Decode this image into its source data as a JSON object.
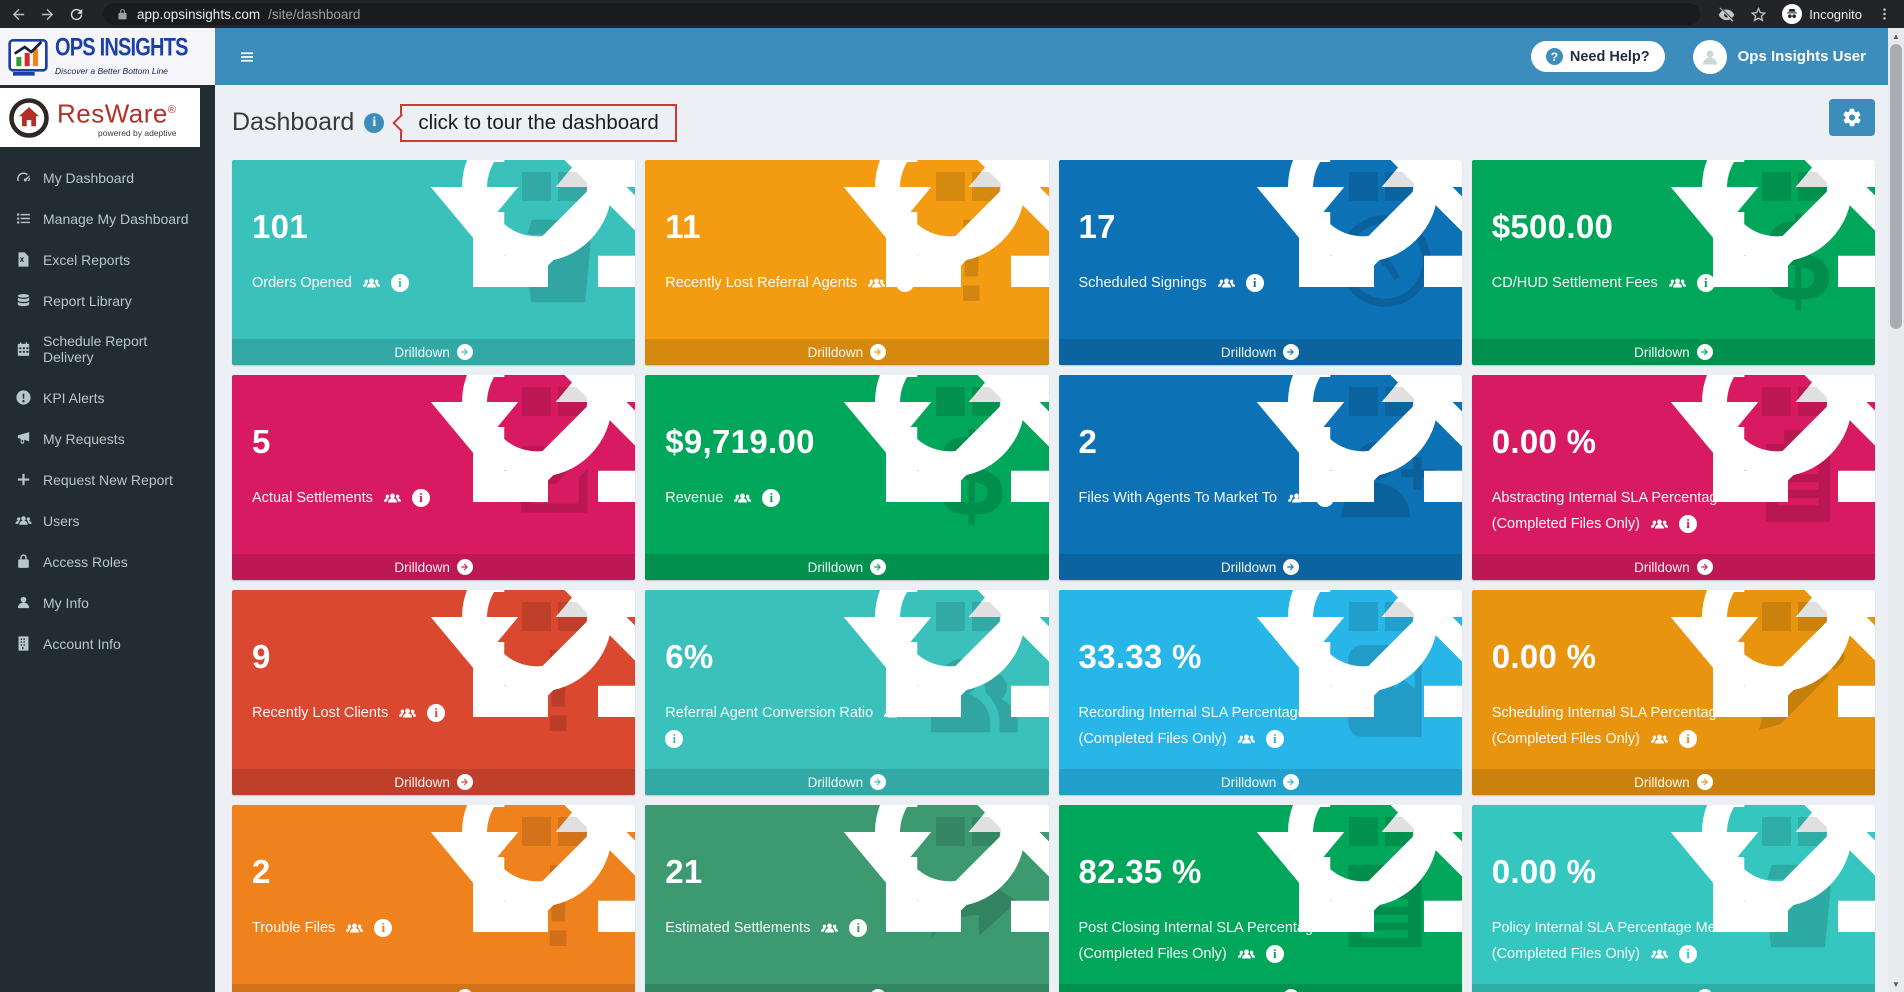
{
  "browser": {
    "url": {
      "host": "app.opsinsights.com",
      "path": "/site/dashboard"
    },
    "incognito_label": "Incognito"
  },
  "app_header": {
    "brand_title": "OPS INSIGHTS",
    "brand_tagline": "Discover a Better Bottom Line",
    "need_help_label": "Need Help?",
    "user_name": "Ops Insights User"
  },
  "sidebar": {
    "logo_text": "ResWare",
    "logo_reg": "®",
    "logo_sub": "powered by adeptive",
    "items": [
      {
        "icon": "gauge-icon",
        "label": "My Dashboard"
      },
      {
        "icon": "list-icon",
        "label": "Manage My Dashboard"
      },
      {
        "icon": "excel-icon",
        "label": "Excel Reports"
      },
      {
        "icon": "database-icon",
        "label": "Report Library"
      },
      {
        "icon": "calendar-icon",
        "label": "Schedule Report Delivery"
      },
      {
        "icon": "alert-circle-icon",
        "label": "KPI Alerts"
      },
      {
        "icon": "bullhorn-icon",
        "label": "My Requests"
      },
      {
        "icon": "plus-icon",
        "label": "Request New Report"
      },
      {
        "icon": "users-icon",
        "label": "Users"
      },
      {
        "icon": "lock-icon",
        "label": "Access Roles"
      },
      {
        "icon": "user-icon",
        "label": "My Info"
      },
      {
        "icon": "building-icon",
        "label": "Account Info"
      }
    ]
  },
  "page": {
    "title": "Dashboard",
    "tour_note": "click to tour the dashboard"
  },
  "tiles": [
    {
      "value": "101",
      "label": "Orders Opened",
      "label2": null,
      "icons_layout": "inline",
      "color": "#3ac1bc",
      "watermark": "bin-icon",
      "drilldown_label": "Drilldown"
    },
    {
      "value": "11",
      "label": "Recently Lost Referral Agents",
      "label2": null,
      "icons_layout": "inline",
      "color": "#f39c12",
      "watermark": "exclamation-icon",
      "drilldown_label": "Drilldown"
    },
    {
      "value": "17",
      "label": "Scheduled Signings",
      "label2": null,
      "icons_layout": "inline",
      "color": "#0d72b5",
      "watermark": "clock-icon",
      "drilldown_label": "Drilldown"
    },
    {
      "value": "$500.00",
      "label": "CD/HUD Settlement Fees",
      "label2": null,
      "icons_layout": "inline",
      "color": "#00a65a",
      "watermark": "dollar-icon",
      "drilldown_label": "Drilldown"
    },
    {
      "value": "5",
      "label": "Actual Settlements",
      "label2": null,
      "icons_layout": "inline",
      "color": "#d81b60",
      "watermark": "edit-icon",
      "drilldown_label": "Drilldown"
    },
    {
      "value": "$9,719.00",
      "label": "Revenue",
      "label2": null,
      "icons_layout": "inline",
      "color": "#00a65a",
      "watermark": "dollar-icon",
      "drilldown_label": "Drilldown"
    },
    {
      "value": "2",
      "label": "Files With Agents To Market To",
      "label2": null,
      "icons_layout": "inline",
      "color": "#0d72b5",
      "watermark": "person-plus-icon",
      "drilldown_label": "Drilldown"
    },
    {
      "value": "0.00 %",
      "label": "Abstracting Internal SLA Percentage Met",
      "label2": "(Completed Files Only)",
      "icons_layout": "second-line",
      "color": "#d81b60",
      "watermark": "clipboard-icon",
      "drilldown_label": "Drilldown"
    },
    {
      "value": "9",
      "label": "Recently Lost Clients",
      "label2": null,
      "icons_layout": "inline",
      "color": "#da4830",
      "watermark": "exclamation-icon",
      "drilldown_label": "Drilldown"
    },
    {
      "value": "6%",
      "label": "Referral Agent Conversion Ratio",
      "label2": null,
      "icons_layout": "info-wrap",
      "color": "#3ac1bc",
      "watermark": "users-lg-icon",
      "drilldown_label": "Drilldown"
    },
    {
      "value": "33.33 %",
      "label": "Recording Internal SLA Percentage Met",
      "label2": "(Completed Files Only)",
      "icons_layout": "second-line",
      "color": "#28b5e8",
      "watermark": "book-icon",
      "drilldown_label": "Drilldown"
    },
    {
      "value": "0.00 %",
      "label": "Scheduling Internal SLA Percentage Met",
      "label2": "(Completed Files Only)",
      "icons_layout": "second-line",
      "color": "#e8940f",
      "watermark": "pencil-icon",
      "drilldown_label": "Drilldown"
    },
    {
      "value": "2",
      "label": "Trouble Files",
      "label2": null,
      "icons_layout": "inline",
      "color": "#f0821e",
      "watermark": "exclamation-icon",
      "drilldown_label": "Drilldown"
    },
    {
      "value": "21",
      "label": "Estimated Settlements",
      "label2": null,
      "icons_layout": "inline",
      "color": "#3d9970",
      "watermark": "share-icon",
      "drilldown_label": "Drilldown"
    },
    {
      "value": "82.35 %",
      "label": "Post Closing Internal SLA Percentage Met",
      "label2": "(Completed Files Only)",
      "icons_layout": "second-line",
      "color": "#00a65a",
      "watermark": "news-icon",
      "drilldown_label": "Drilldown"
    },
    {
      "value": "0.00 %",
      "label": "Policy Internal SLA Percentage Met",
      "label2": "(Completed Files Only)",
      "icons_layout": "second-line",
      "color": "#36c6c0",
      "watermark": "bin-icon",
      "drilldown_label": "Drilldown"
    }
  ]
}
